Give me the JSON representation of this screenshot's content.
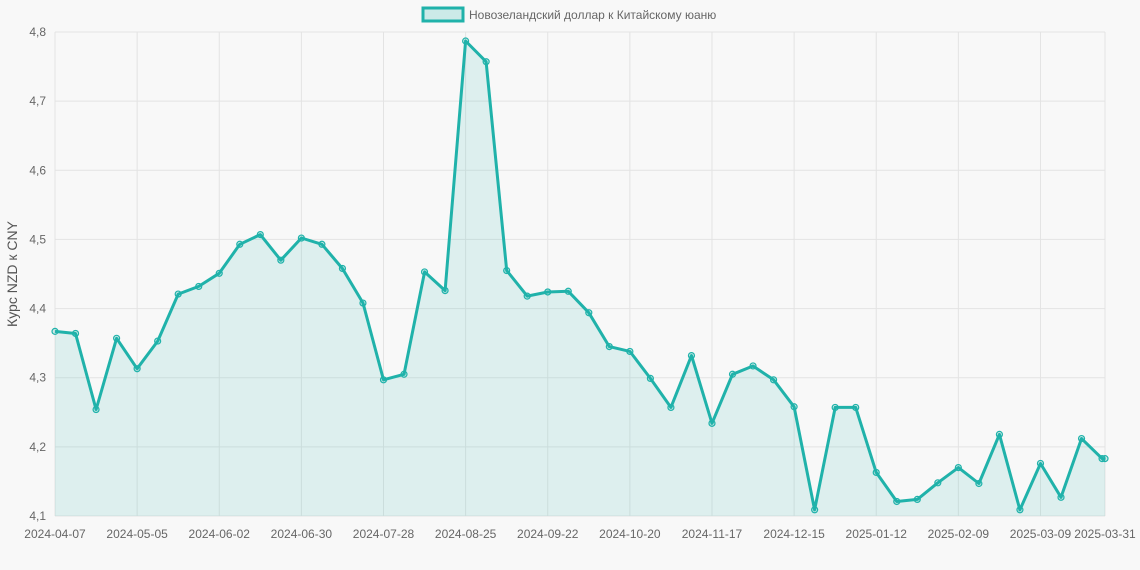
{
  "chart_data": {
    "type": "line",
    "title": "",
    "xlabel": "",
    "ylabel": "Курс NZD к CNY",
    "legend": {
      "position": "top",
      "entries": [
        "Новозеландский доллар к Китайскому юаню"
      ]
    },
    "grid": true,
    "fill": true,
    "colors": {
      "line": "#20B2AA",
      "fill": "rgba(32,178,170,0.12)",
      "grid": "#e3e3e3",
      "text": "#666666"
    },
    "ylim": [
      4.1,
      4.8
    ],
    "y_ticks": [
      "4,1",
      "4,2",
      "4,3",
      "4,4",
      "4,5",
      "4,6",
      "4,7",
      "4,8"
    ],
    "x_tick_labels": [
      "2024-04-07",
      "2024-05-05",
      "2024-06-02",
      "2024-06-30",
      "2024-07-28",
      "2024-08-25",
      "2024-09-22",
      "2024-10-20",
      "2024-11-17",
      "2024-12-15",
      "2025-01-12",
      "2025-02-09",
      "2025-03-09",
      "2025-03-31"
    ],
    "x": [
      "2024-04-07",
      "2024-04-14",
      "2024-04-21",
      "2024-04-28",
      "2024-05-05",
      "2024-05-12",
      "2024-05-19",
      "2024-05-26",
      "2024-06-02",
      "2024-06-09",
      "2024-06-16",
      "2024-06-23",
      "2024-06-30",
      "2024-07-07",
      "2024-07-14",
      "2024-07-21",
      "2024-07-28",
      "2024-08-04",
      "2024-08-11",
      "2024-08-18",
      "2024-08-25",
      "2024-09-01",
      "2024-09-08",
      "2024-09-15",
      "2024-09-22",
      "2024-09-29",
      "2024-10-06",
      "2024-10-13",
      "2024-10-20",
      "2024-10-27",
      "2024-11-03",
      "2024-11-10",
      "2024-11-17",
      "2024-11-24",
      "2024-12-01",
      "2024-12-08",
      "2024-12-15",
      "2024-12-22",
      "2024-12-29",
      "2025-01-05",
      "2025-01-12",
      "2025-01-19",
      "2025-01-26",
      "2025-02-02",
      "2025-02-09",
      "2025-02-16",
      "2025-02-23",
      "2025-03-02",
      "2025-03-09",
      "2025-03-16",
      "2025-03-23",
      "2025-03-30",
      "2025-03-31"
    ],
    "series": [
      {
        "name": "Новозеландский доллар к Китайскому юаню",
        "values": [
          4.367,
          4.364,
          4.254,
          4.357,
          4.313,
          4.353,
          4.421,
          4.432,
          4.451,
          4.493,
          4.507,
          4.47,
          4.502,
          4.493,
          4.458,
          4.408,
          4.297,
          4.305,
          4.453,
          4.426,
          4.787,
          4.757,
          4.455,
          4.418,
          4.424,
          4.425,
          4.394,
          4.345,
          4.338,
          4.299,
          4.257,
          4.332,
          4.234,
          4.305,
          4.317,
          4.297,
          4.258,
          4.109,
          4.257,
          4.257,
          4.163,
          4.121,
          4.124,
          4.148,
          4.17,
          4.147,
          4.218,
          4.109,
          4.176,
          4.127,
          4.212,
          4.183,
          4.183
        ]
      }
    ]
  }
}
